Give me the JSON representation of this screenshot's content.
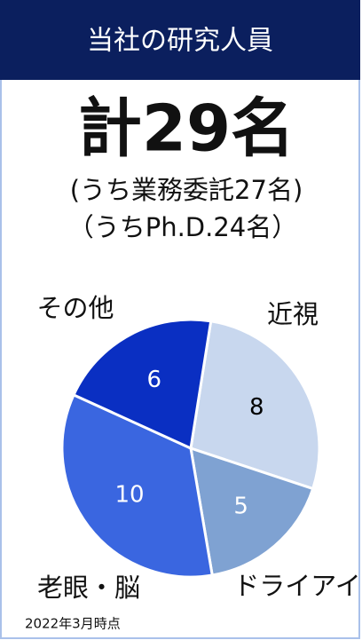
{
  "chart_data": {
    "type": "pie",
    "title": "当社の研究人員",
    "headline": "計29名",
    "subtitles": [
      "(うち業務委託27名)",
      "（うちPh.D.24名）"
    ],
    "note": "2022年3月時点",
    "categories": [
      "近視",
      "ドライアイ",
      "老眼・脳",
      "その他"
    ],
    "values": [
      8,
      5,
      10,
      6
    ],
    "colors": [
      "#c8d7ee",
      "#7fa2d2",
      "#3a66e0",
      "#0a2fc2"
    ],
    "label_colors": [
      "#000000",
      "#ffffff",
      "#ffffff",
      "#ffffff"
    ]
  }
}
